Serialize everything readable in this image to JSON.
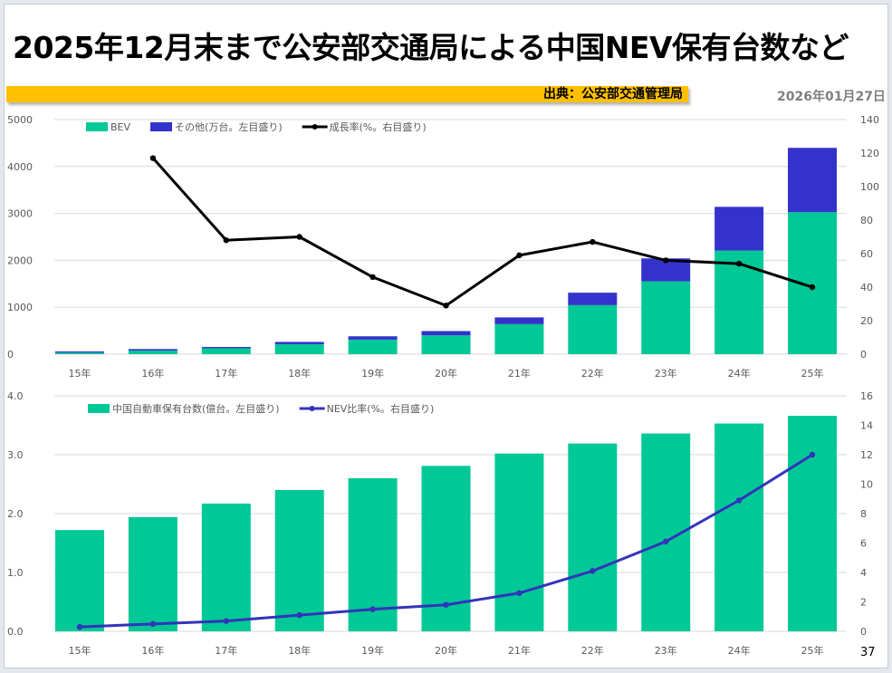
{
  "title": "2025年12月末まで公安部交通局による中国NEV保有台数など",
  "source": "出典：公安部交通管理局",
  "date": "2026年01月27日",
  "page_number": "37",
  "chart_data": [
    {
      "type": "bar",
      "stacked": true,
      "categories": [
        "15年",
        "16年",
        "17年",
        "18年",
        "19年",
        "20年",
        "21年",
        "22年",
        "23年",
        "24年",
        "25年"
      ],
      "series": [
        {
          "name": "BEV",
          "axis": "left",
          "color": "#00c896",
          "values": [
            33,
            74,
            125,
            211,
            310,
            400,
            640,
            1045,
            1552,
            2209,
            3025
          ]
        },
        {
          "name": "その他(万台。左目盛り)",
          "axis": "left",
          "color": "#3333cc",
          "values": [
            25,
            35,
            28,
            50,
            71,
            92,
            144,
            265,
            489,
            931,
            1372
          ]
        },
        {
          "name": "成長率(%。右目盛り)",
          "type": "line",
          "axis": "right",
          "color": "#000000",
          "values": [
            null,
            117,
            68,
            70,
            46,
            29,
            59,
            67,
            56,
            54,
            40
          ]
        }
      ],
      "yleft": {
        "ylim": [
          0,
          5000
        ],
        "ticks": [
          "0",
          "1000",
          "2000",
          "3000",
          "4000",
          "5000"
        ]
      },
      "yright": {
        "ylim": [
          0,
          140
        ],
        "ticks": [
          "0",
          "20",
          "40",
          "60",
          "80",
          "100",
          "120",
          "140"
        ]
      },
      "grid": true,
      "legend": "top-left"
    },
    {
      "type": "bar",
      "categories": [
        "15年",
        "16年",
        "17年",
        "18年",
        "19年",
        "20年",
        "21年",
        "22年",
        "23年",
        "24年",
        "25年"
      ],
      "series": [
        {
          "name": "中国自動車保有台数(億台。左目盛り)",
          "axis": "left",
          "color": "#00c896",
          "values": [
            1.72,
            1.94,
            2.17,
            2.4,
            2.6,
            2.81,
            3.02,
            3.19,
            3.36,
            3.53,
            3.66
          ]
        },
        {
          "name": "NEV比率(%。右目盛り)",
          "type": "line",
          "axis": "right",
          "color": "#3333bb",
          "values": [
            0.3,
            0.5,
            0.7,
            1.1,
            1.5,
            1.8,
            2.6,
            4.1,
            6.1,
            8.9,
            12.0
          ]
        }
      ],
      "yleft": {
        "ylim": [
          0,
          4
        ],
        "ticks": [
          "0.0",
          "1.0",
          "2.0",
          "3.0",
          "4.0"
        ]
      },
      "yright": {
        "ylim": [
          0,
          16
        ],
        "ticks": [
          "0",
          "2",
          "4",
          "6",
          "8",
          "10",
          "12",
          "14",
          "16"
        ]
      },
      "grid": true,
      "legend": "top-left"
    }
  ]
}
